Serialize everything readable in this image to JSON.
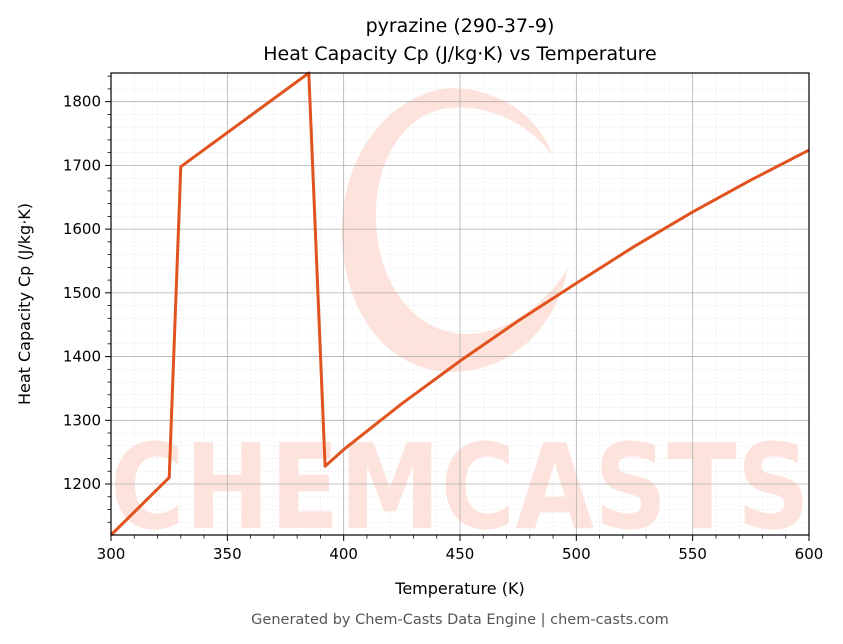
{
  "chart_data": {
    "type": "line",
    "title": "pyrazine (290-37-9)",
    "subtitle": "Heat Capacity Cp (J/kg·K) vs Temperature",
    "xlabel": "Temperature (K)",
    "ylabel": "Heat Capacity Cp (J/kg·K)",
    "xlim": [
      300,
      600
    ],
    "ylim": [
      1120,
      1845
    ],
    "x_ticks": [
      300,
      350,
      400,
      450,
      500,
      550,
      600
    ],
    "y_ticks": [
      1200,
      1300,
      1400,
      1500,
      1600,
      1700,
      1800
    ],
    "grid": true,
    "minor_grid": true,
    "legend": "none",
    "series": [
      {
        "color": "#e0531f",
        "x": [
          300,
          325,
          330,
          385,
          392,
          400,
          425,
          450,
          475,
          500,
          525,
          550,
          575,
          600
        ],
        "y": [
          1120,
          1210,
          1698,
          1845,
          1228,
          1254,
          1326,
          1393,
          1456,
          1515,
          1573,
          1627,
          1677,
          1724
        ]
      }
    ]
  },
  "watermark": {
    "text": "CHEMCASTS",
    "color": "#fde3dc"
  },
  "footer": "Generated by Chem-Casts Data Engine | chem-casts.com"
}
